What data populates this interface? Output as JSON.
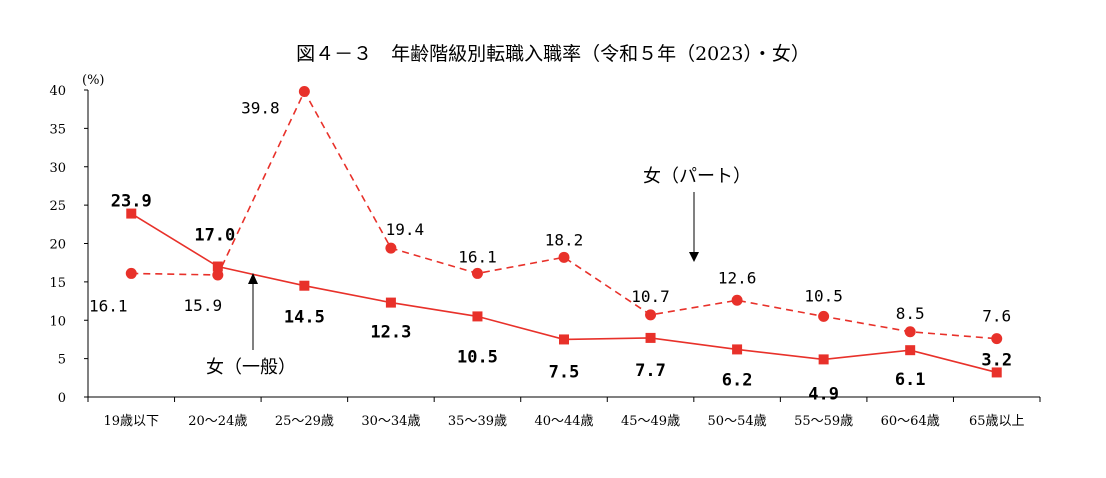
{
  "chart_data": {
    "type": "line",
    "title": "図４－３　年齢階級別転職入職率（令和５年（2023）・女）",
    "ylabel": "(%)",
    "ylim": [
      0,
      40
    ],
    "yticks": [
      0,
      5,
      10,
      15,
      20,
      25,
      30,
      35,
      40
    ],
    "categories": [
      "19歳以下",
      "20～24歳",
      "25～29歳",
      "30～34歳",
      "35～39歳",
      "40～44歳",
      "45～49歳",
      "50～54歳",
      "55～59歳",
      "60～64歳",
      "65歳以上"
    ],
    "series": [
      {
        "name": "女（パート）",
        "values": [
          16.1,
          15.9,
          39.8,
          19.4,
          16.1,
          18.2,
          10.7,
          12.6,
          10.5,
          8.5,
          7.6
        ],
        "labels": [
          "16.1",
          "15.9",
          "39.8",
          "19.4",
          "16.1",
          "18.2",
          "10.7",
          "12.6",
          "10.5",
          "8.5",
          "7.6"
        ],
        "color": "#e8312a",
        "line_style": "dashed",
        "marker": "circle"
      },
      {
        "name": "女（一般）",
        "values": [
          23.9,
          17.0,
          14.5,
          12.3,
          10.5,
          7.5,
          7.7,
          6.2,
          4.9,
          6.1,
          3.2
        ],
        "labels": [
          "23.9",
          "17.0",
          "14.5",
          "12.3",
          "10.5",
          "7.5",
          "7.7",
          "6.2",
          "4.9",
          "6.1",
          "3.2"
        ],
        "color": "#e8312a",
        "line_style": "solid",
        "marker": "square"
      }
    ],
    "grid": false,
    "legend": "inline annotations with arrows"
  }
}
